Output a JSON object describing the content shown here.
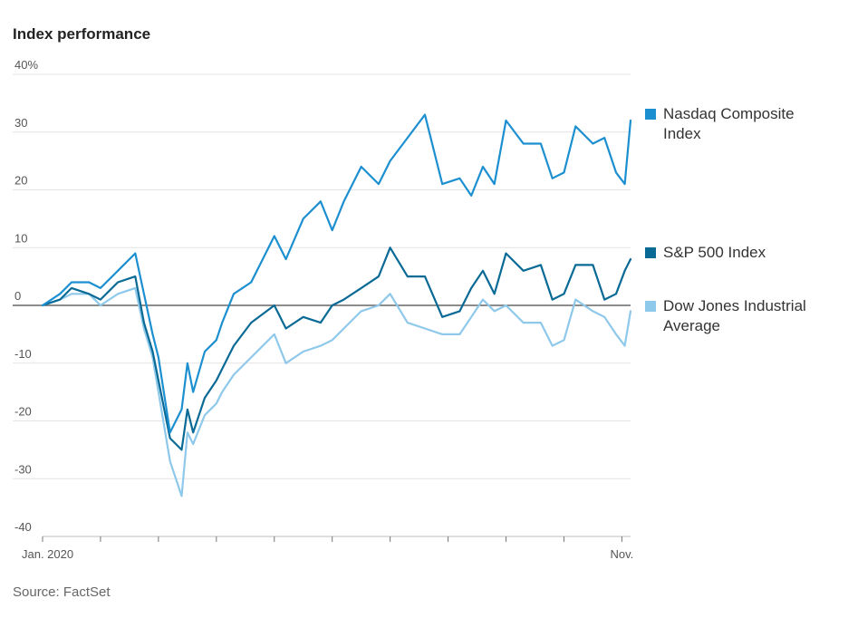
{
  "title": "Index performance",
  "source": "Source: FactSet",
  "chart_data": {
    "type": "line",
    "title": "Index performance",
    "xlabel": "",
    "ylabel": "",
    "ylim": [
      -40,
      40
    ],
    "y_ticks": [
      40,
      30,
      20,
      10,
      0,
      -10,
      -20,
      -30,
      -40
    ],
    "y_tick_labels": [
      "40%",
      "30",
      "20",
      "10",
      "0",
      "-10",
      "-20",
      "-30",
      "-40"
    ],
    "x_range": [
      0,
      10.15
    ],
    "x_ticks": [
      {
        "x": 0,
        "label": "Jan. 2020"
      },
      {
        "x": 1,
        "label": ""
      },
      {
        "x": 2,
        "label": ""
      },
      {
        "x": 3,
        "label": ""
      },
      {
        "x": 4,
        "label": ""
      },
      {
        "x": 5,
        "label": ""
      },
      {
        "x": 6,
        "label": ""
      },
      {
        "x": 7,
        "label": ""
      },
      {
        "x": 8,
        "label": ""
      },
      {
        "x": 9,
        "label": ""
      },
      {
        "x": 10,
        "label": "Nov."
      }
    ],
    "x": [
      0,
      0.3,
      0.5,
      0.8,
      1.0,
      1.3,
      1.6,
      1.75,
      1.9,
      2.0,
      2.2,
      2.4,
      2.5,
      2.6,
      2.8,
      3.0,
      3.1,
      3.3,
      3.6,
      4.0,
      4.2,
      4.5,
      4.8,
      5.0,
      5.2,
      5.5,
      5.8,
      6.0,
      6.3,
      6.6,
      6.9,
      7.2,
      7.4,
      7.6,
      7.8,
      8.0,
      8.3,
      8.6,
      8.8,
      9.0,
      9.2,
      9.5,
      9.7,
      9.9,
      10.05,
      10.15
    ],
    "series": [
      {
        "name": "Nasdaq Composite Index",
        "color": "#1c8fd0",
        "values": [
          0,
          2,
          4,
          4,
          3,
          6,
          9,
          2,
          -5,
          -9,
          -22,
          -18,
          -10,
          -15,
          -8,
          -6,
          -3,
          2,
          4,
          12,
          8,
          15,
          18,
          13,
          18,
          24,
          21,
          25,
          29,
          33,
          21,
          22,
          19,
          24,
          21,
          32,
          28,
          28,
          22,
          23,
          31,
          28,
          29,
          23,
          21,
          32
        ]
      },
      {
        "name": "S&P 500 Index",
        "color": "#0a6a96",
        "values": [
          0,
          1,
          3,
          2,
          1,
          4,
          5,
          -3,
          -8,
          -13,
          -23,
          -25,
          -18,
          -22,
          -16,
          -13,
          -11,
          -7,
          -3,
          0,
          -4,
          -2,
          -3,
          0,
          1,
          3,
          5,
          10,
          5,
          5,
          -2,
          -1,
          3,
          6,
          2,
          9,
          6,
          7,
          1,
          2,
          7,
          7,
          1,
          2,
          6,
          8
        ]
      },
      {
        "name": "Dow Jones Industrial Average",
        "color": "#8ec8ea",
        "values": [
          0,
          1,
          2,
          2,
          0,
          2,
          3,
          -4,
          -9,
          -15,
          -27,
          -33,
          -22,
          -24,
          -19,
          -17,
          -15,
          -12,
          -9,
          -5,
          -10,
          -8,
          -7,
          -6,
          -4,
          -1,
          0,
          2,
          -3,
          -4,
          -5,
          -5,
          -2,
          1,
          -1,
          0,
          -3,
          -3,
          -7,
          -6,
          1,
          -1,
          -2,
          -5,
          -7,
          -1
        ]
      }
    ],
    "legend_position": "right"
  }
}
